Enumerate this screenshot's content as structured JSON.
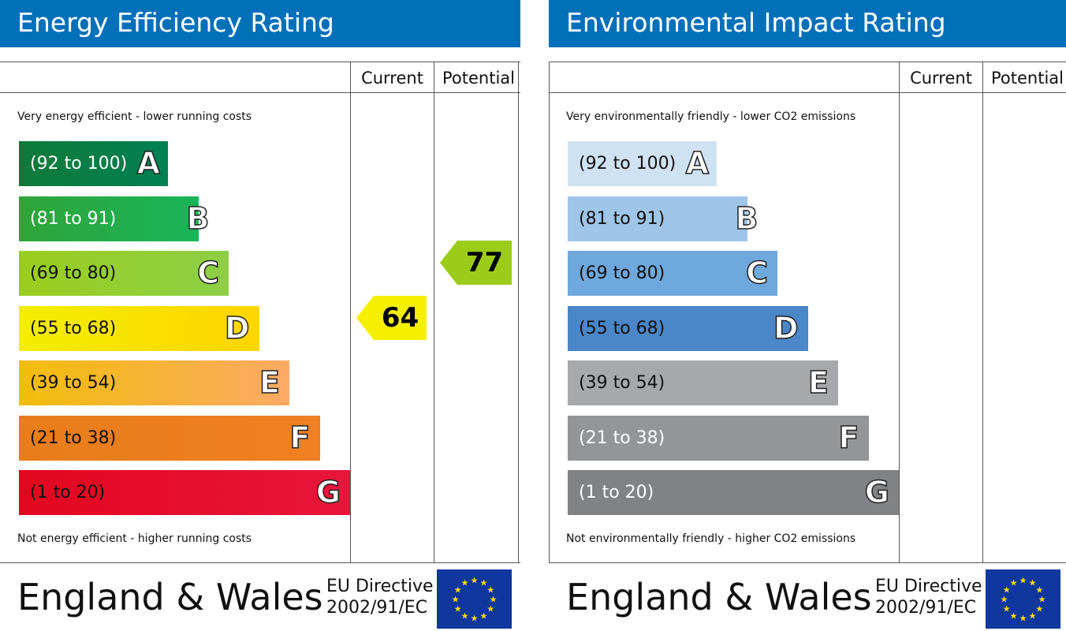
{
  "charts": [
    {
      "id": "energy",
      "title": "Energy Efficiency Rating",
      "columns": {
        "current": "Current",
        "potential": "Potential"
      },
      "top_caption": "Very energy efficient - lower running costs",
      "bottom_caption": "Not energy efficient - higher running costs",
      "footer": {
        "region": "England & Wales",
        "directive_line1": "EU Directive",
        "directive_line2": "2002/91/EC"
      },
      "flag_icon": "eu-flag-icon"
    },
    {
      "id": "env",
      "title": "Environmental Impact Rating",
      "columns": {
        "current": "Current",
        "potential": "Potential"
      },
      "top_caption": "Very environmentally friendly - lower CO2 emissions",
      "bottom_caption": "Not environmentally friendly - higher CO2 emissions",
      "footer": {
        "region": "England & Wales",
        "directive_line1": "EU Directive",
        "directive_line2": "2002/91/EC"
      },
      "flag_icon": "eu-flag-icon"
    }
  ],
  "chart_data": [
    {
      "type": "bar",
      "title": "Energy Efficiency Rating",
      "bands": [
        {
          "letter": "A",
          "range": "(92 to 100)",
          "color": "#008054",
          "text_color": "#ffffff"
        },
        {
          "letter": "B",
          "range": "(81 to 91)",
          "color": "#19b459",
          "text_color": "#ffffff"
        },
        {
          "letter": "C",
          "range": "(69 to 80)",
          "color": "#8dce46",
          "text_color": "#111111"
        },
        {
          "letter": "D",
          "range": "(55 to 68)",
          "color": "#ffd500",
          "text_color": "#111111"
        },
        {
          "letter": "E",
          "range": "(39 to 54)",
          "color": "#fcaa65",
          "text_color": "#111111"
        },
        {
          "letter": "F",
          "range": "(21 to 38)",
          "color": "#ef8023",
          "text_color": "#111111"
        },
        {
          "letter": "G",
          "range": "(1 to 20)",
          "color": "#e9153b",
          "text_color": "#111111"
        }
      ],
      "current": {
        "value": 64,
        "band": "D",
        "color": "#f4f000"
      },
      "potential": {
        "value": 77,
        "band": "C",
        "color": "#9ccc1a"
      }
    },
    {
      "type": "bar",
      "title": "Environmental Impact Rating",
      "bands": [
        {
          "letter": "A",
          "range": "(92 to 100)",
          "color": "#cfe2f3",
          "text_color": "#111111"
        },
        {
          "letter": "B",
          "range": "(81 to 91)",
          "color": "#9fc5e8",
          "text_color": "#111111"
        },
        {
          "letter": "C",
          "range": "(69 to 80)",
          "color": "#6fa8dc",
          "text_color": "#111111"
        },
        {
          "letter": "D",
          "range": "(55 to 68)",
          "color": "#4a86c8",
          "text_color": "#111111"
        },
        {
          "letter": "E",
          "range": "(39 to 54)",
          "color": "#a6a8ab",
          "text_color": "#111111"
        },
        {
          "letter": "F",
          "range": "(21 to 38)",
          "color": "#939598",
          "text_color": "#ffffff"
        },
        {
          "letter": "G",
          "range": "(1 to 20)",
          "color": "#808285",
          "text_color": "#ffffff"
        }
      ],
      "current": null,
      "potential": null
    }
  ],
  "band_gradients": {
    "energy": [
      "#0f7a37",
      "#2fa53a",
      "#9acd1e",
      "#f3ee00",
      "#f2bd0a",
      "#e87d1a",
      "#e2071f"
    ]
  }
}
